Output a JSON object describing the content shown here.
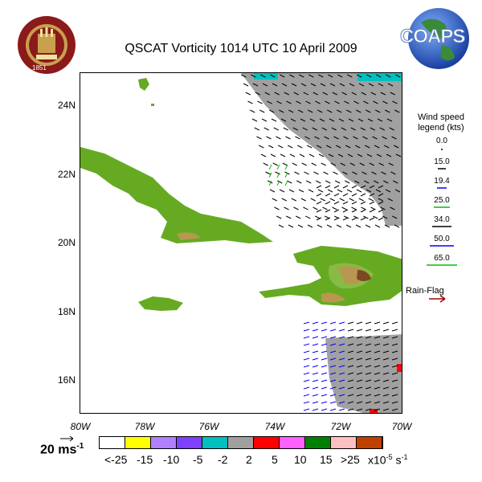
{
  "title": "QSCAT Vorticity 1014 UTC 10 April 2009",
  "logos": {
    "fsu_text": "FLORIDA STATE UNIVERSITY",
    "fsu_year": "1851",
    "coaps_text": "COAPS"
  },
  "axes": {
    "y_ticks": [
      "24N",
      "22N",
      "20N",
      "18N",
      "16N"
    ],
    "x_ticks": [
      "80W",
      "78W",
      "76W",
      "74W",
      "72W",
      "70W"
    ]
  },
  "wind_legend": {
    "title_line1": "Wind speed",
    "title_line2": "legend (kts)",
    "entries": [
      {
        "label": "0.0",
        "color": "#000000"
      },
      {
        "label": "15.0",
        "color": "#000000"
      },
      {
        "label": "19.4",
        "color": "#000000"
      },
      {
        "label": "25.0",
        "color": "#0000ff"
      },
      {
        "label": "34.0",
        "color": "#00c000"
      },
      {
        "label": "50.0",
        "color": "#000000"
      },
      {
        "label": "65.0",
        "color": "#0000ff"
      },
      {
        "label": "",
        "color": "#00c000"
      }
    ],
    "rain_flag_label": "Rain-Flag",
    "rain_flag_color": "#a00000"
  },
  "scale": {
    "label": "20 ms",
    "exponent": "-1"
  },
  "colorbar": {
    "colors": [
      "#ffffff",
      "#ffff00",
      "#b080ff",
      "#8040ff",
      "#00c0c0",
      "#a0a0a0",
      "#ff0000",
      "#ff60ff",
      "#008000",
      "#ffc0c0",
      "#c04000"
    ],
    "labels": [
      "<-25",
      "-15",
      "-10",
      "-5",
      "-2",
      "2",
      "5",
      "10",
      "15",
      ">25"
    ],
    "unit": "x10",
    "unit_exp1": "-5",
    "unit_mid": " s",
    "unit_exp2": "-1"
  },
  "map_colors": {
    "land_light": "#66aa22",
    "land_mid": "#88bb44",
    "land_tan": "#b89850",
    "land_brown": "#7a4a20",
    "land_dark": "#4a2010",
    "vort_gray": "#a0a0a0",
    "vort_cyan": "#00c0c0",
    "vort_red": "#ff0000"
  }
}
